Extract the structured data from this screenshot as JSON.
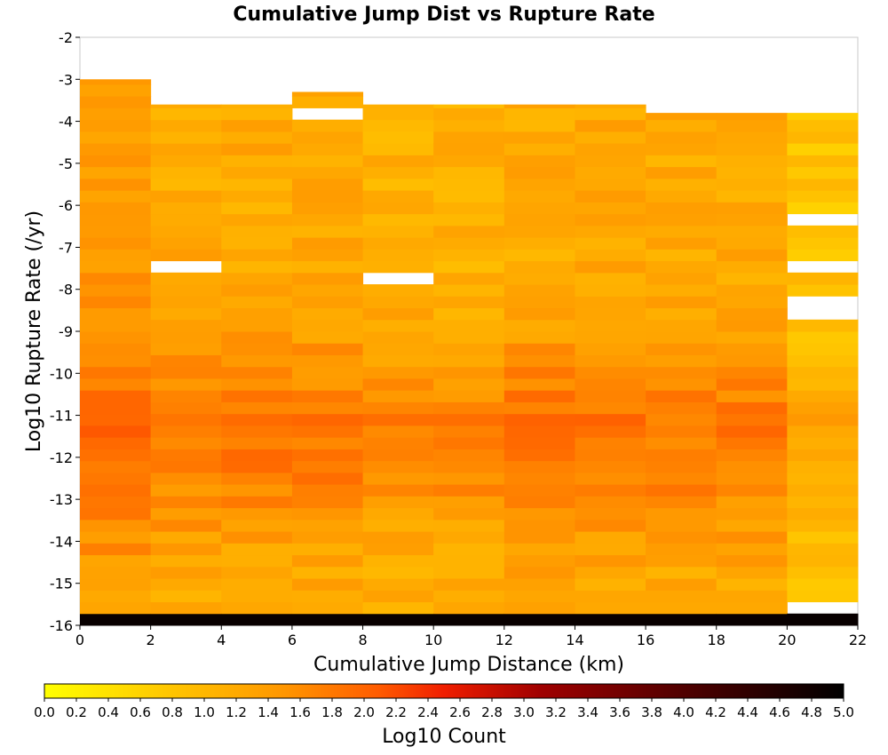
{
  "chart_data": {
    "type": "heatmap",
    "title": "Cumulative Jump Dist vs Rupture Rate",
    "xlabel": "Cumulative Jump Distance (km)",
    "ylabel": "Log10 Rupture Rate (/yr)",
    "xlim": [
      0,
      22
    ],
    "ylim": [
      -16,
      -2
    ],
    "x_ticks": [
      "0",
      "2",
      "4",
      "6",
      "8",
      "10",
      "12",
      "14",
      "16",
      "18",
      "20",
      "22"
    ],
    "y_ticks": [
      "-2",
      "-3",
      "-4",
      "-5",
      "-6",
      "-7",
      "-8",
      "-9",
      "-10",
      "-11",
      "-12",
      "-13",
      "-14",
      "-15",
      "-16"
    ],
    "x_bin_edges": [
      0,
      2,
      4,
      6,
      8,
      10,
      12,
      14,
      16,
      18,
      20,
      22
    ],
    "y_bin_size": 0.28,
    "y_bin_start": -16,
    "colorbar": {
      "label": "Log10 Count",
      "min": 0.0,
      "max": 5.0,
      "ticks": [
        "0.0",
        "0.2",
        "0.4",
        "0.6",
        "0.8",
        "1.0",
        "1.2",
        "1.4",
        "1.6",
        "1.8",
        "2.0",
        "2.2",
        "2.4",
        "2.6",
        "2.8",
        "3.0",
        "3.2",
        "3.4",
        "3.6",
        "3.8",
        "4.0",
        "4.2",
        "4.4",
        "4.6",
        "4.8",
        "5.0"
      ],
      "colors": [
        "#ffff00",
        "#ffc800",
        "#ff9600",
        "#ff5a00",
        "#f01e00",
        "#a00000",
        "#500000",
        "#000000"
      ]
    },
    "bottom_row_value": 4.9,
    "columns": [
      {
        "x": [
          0,
          2
        ],
        "top": -3.0,
        "base": 1.4,
        "amp": 0.5,
        "gaps": []
      },
      {
        "x": [
          2,
          4
        ],
        "top": -3.6,
        "base": 1.2,
        "amp": 0.6,
        "gaps": [
          -7.4
        ]
      },
      {
        "x": [
          4,
          6
        ],
        "top": -3.6,
        "base": 1.2,
        "amp": 0.6,
        "gaps": []
      },
      {
        "x": [
          6,
          8
        ],
        "top": -3.3,
        "base": 1.2,
        "amp": 0.6,
        "gaps": [
          -3.8
        ]
      },
      {
        "x": [
          8,
          10
        ],
        "top": -3.6,
        "base": 1.1,
        "amp": 0.6,
        "gaps": [
          -7.7
        ]
      },
      {
        "x": [
          10,
          12
        ],
        "top": -3.6,
        "base": 1.1,
        "amp": 0.6,
        "gaps": []
      },
      {
        "x": [
          12,
          14
        ],
        "top": -3.6,
        "base": 1.2,
        "amp": 0.7,
        "gaps": []
      },
      {
        "x": [
          14,
          16
        ],
        "top": -3.6,
        "base": 1.2,
        "amp": 0.7,
        "gaps": []
      },
      {
        "x": [
          16,
          18
        ],
        "top": -3.8,
        "base": 1.2,
        "amp": 0.6,
        "gaps": []
      },
      {
        "x": [
          18,
          20
        ],
        "top": -3.8,
        "base": 1.2,
        "amp": 0.6,
        "gaps": []
      },
      {
        "x": [
          20,
          22
        ],
        "top": -3.8,
        "base": 0.8,
        "amp": 0.5,
        "gaps": [
          -6.3,
          -7.4,
          -8.4,
          -8.6,
          -15.5
        ]
      }
    ]
  }
}
